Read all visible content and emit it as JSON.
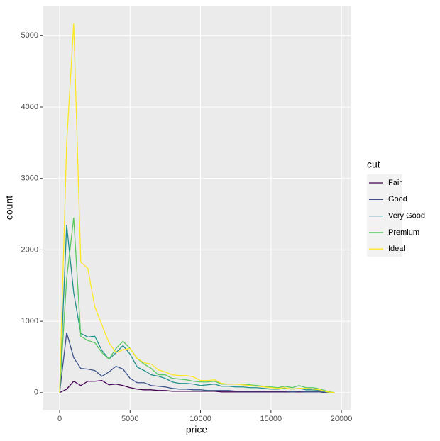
{
  "chart_data": {
    "type": "line",
    "x_label": "price",
    "y_label": "count",
    "legend_title": "cut",
    "x": [
      0,
      500,
      1000,
      1500,
      2000,
      2500,
      3000,
      3500,
      4000,
      4500,
      5000,
      5500,
      6000,
      6500,
      7000,
      7500,
      8000,
      8500,
      9000,
      9500,
      10000,
      10500,
      11000,
      11500,
      12000,
      12500,
      13000,
      13500,
      14000,
      14500,
      15000,
      15500,
      16000,
      16500,
      17000,
      17500,
      18000,
      18500,
      19000,
      19500
    ],
    "series": [
      {
        "name": "Fair",
        "color": "#440154",
        "values": [
          0,
          50,
          160,
          100,
          160,
          160,
          170,
          110,
          120,
          100,
          70,
          50,
          40,
          40,
          30,
          30,
          20,
          20,
          20,
          20,
          20,
          20,
          20,
          10,
          10,
          10,
          10,
          10,
          10,
          10,
          10,
          10,
          10,
          10,
          10,
          10,
          10,
          10,
          0,
          0
        ]
      },
      {
        "name": "Good",
        "color": "#3B528B",
        "values": [
          0,
          840,
          490,
          340,
          330,
          310,
          230,
          290,
          370,
          330,
          200,
          140,
          140,
          100,
          90,
          80,
          60,
          50,
          50,
          40,
          40,
          30,
          30,
          30,
          30,
          20,
          20,
          20,
          20,
          20,
          20,
          20,
          20,
          10,
          20,
          10,
          10,
          10,
          0,
          0
        ]
      },
      {
        "name": "Very Good",
        "color": "#21908C",
        "values": [
          0,
          2350,
          1400,
          830,
          780,
          790,
          590,
          470,
          560,
          660,
          540,
          360,
          310,
          250,
          230,
          200,
          150,
          130,
          130,
          120,
          100,
          110,
          120,
          90,
          90,
          80,
          80,
          70,
          70,
          60,
          50,
          50,
          60,
          50,
          60,
          40,
          40,
          30,
          10,
          0
        ]
      },
      {
        "name": "Premium",
        "color": "#5DC863",
        "values": [
          0,
          1600,
          2450,
          790,
          730,
          700,
          560,
          470,
          620,
          720,
          620,
          480,
          400,
          340,
          250,
          250,
          200,
          190,
          180,
          160,
          150,
          150,
          160,
          120,
          120,
          120,
          120,
          110,
          100,
          90,
          80,
          70,
          90,
          70,
          100,
          70,
          70,
          50,
          20,
          0
        ]
      },
      {
        "name": "Ideal",
        "color": "#FDE725",
        "values": [
          0,
          3500,
          5170,
          1830,
          1740,
          1200,
          950,
          700,
          560,
          600,
          620,
          480,
          420,
          400,
          320,
          290,
          250,
          240,
          240,
          220,
          170,
          170,
          180,
          130,
          120,
          120,
          110,
          100,
          90,
          80,
          70,
          60,
          70,
          50,
          60,
          60,
          50,
          40,
          10,
          0
        ]
      }
    ],
    "xlim": [
      -1210,
      20650
    ],
    "ylim": [
      -240,
      5420
    ],
    "xticks": [
      0,
      5000,
      10000,
      15000,
      20000
    ],
    "yticks": [
      0,
      1000,
      2000,
      3000,
      4000,
      5000
    ],
    "grid": true,
    "legend": "right"
  }
}
